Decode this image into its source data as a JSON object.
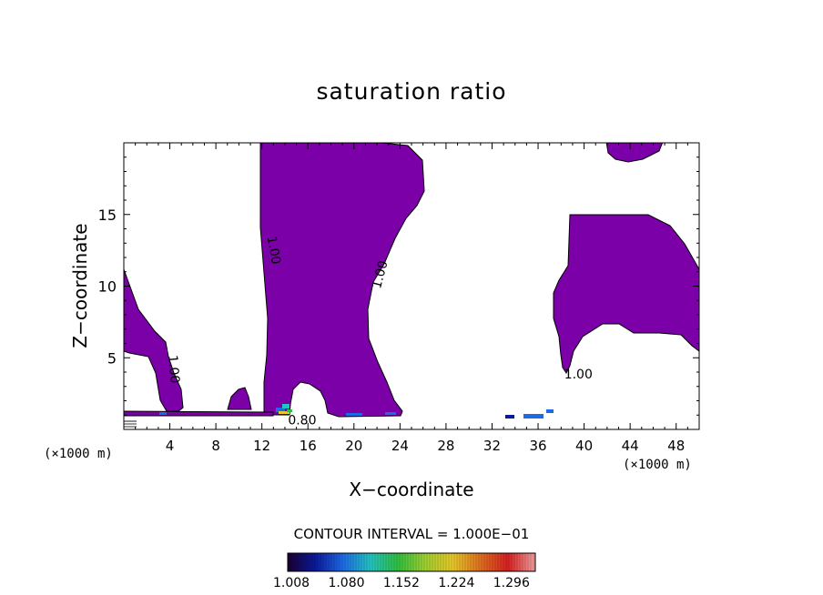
{
  "chart_data": {
    "type": "contour",
    "title": "saturation ratio",
    "xlabel": "X−coordinate",
    "ylabel": "Z−coordinate",
    "x_unit_left": "(×1000 m)",
    "x_unit_right": "(×1000 m)",
    "xlim": [
      0,
      50
    ],
    "ylim": [
      0,
      20
    ],
    "xticks": [
      4,
      8,
      12,
      16,
      20,
      24,
      28,
      32,
      36,
      40,
      44,
      48
    ],
    "yticks": [
      5,
      10,
      15
    ],
    "fill_color": "#7b00a8",
    "contour_labels": [
      {
        "text": "1.00",
        "x": 13.0,
        "z": 12.5,
        "rotation": 80
      },
      {
        "text": "1.00",
        "x": 22.3,
        "z": 10.8,
        "rotation": -75
      },
      {
        "text": "1.00",
        "x": 4.3,
        "z": 4.2,
        "rotation": 85
      },
      {
        "text": "1.00",
        "x": 39.5,
        "z": 3.8,
        "rotation": 0
      },
      {
        "text": "0.80",
        "x": 15.5,
        "z": 0.6,
        "rotation": 0
      }
    ],
    "contour_interval_text": "CONTOUR INTERVAL = 1.000E−01",
    "colorbar": {
      "min": 1.008,
      "max": 1.332,
      "tick_labels": [
        "1.008",
        "1.080",
        "1.152",
        "1.224",
        "1.296"
      ],
      "colors": [
        "#1a0033",
        "#0a1a9a",
        "#1e6ae6",
        "#22c4c4",
        "#30c040",
        "#a0d030",
        "#e8c828",
        "#e07020",
        "#d82020",
        "#f0a0a0"
      ]
    }
  }
}
